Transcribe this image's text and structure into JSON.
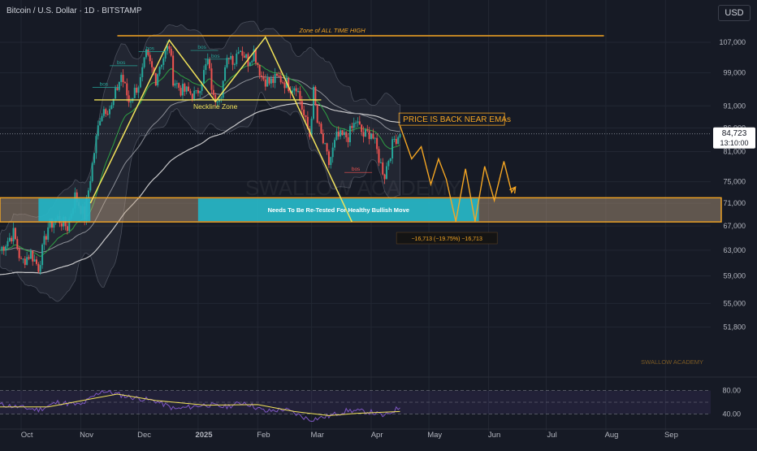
{
  "header": {
    "currency": "USD"
  },
  "chart_data": {
    "type": "candlestick",
    "title": "Bitcoin / U.S. Dollar · 1D · BITSTAMP",
    "ylim": [
      45500,
      112000
    ],
    "price_ticks": [
      107000,
      99000,
      91000,
      86000,
      81000,
      75000,
      71000,
      67000,
      63000,
      59000,
      55000,
      51800
    ],
    "price_tick_labels": [
      "107,000",
      "99,000",
      "91,000",
      "86,000",
      "81,000",
      "75,000",
      "71,000",
      "67,000",
      "63,000",
      "59,000",
      "55,000",
      "51,800"
    ],
    "last_price": 84723,
    "last_price_label": "84,723",
    "countdown_label": "13:10:00",
    "x_labels": [
      "Oct",
      "Nov",
      "Dec",
      "2025",
      "Feb",
      "Mar",
      "Apr",
      "May",
      "Jun",
      "Jul",
      "Aug",
      "Sep"
    ],
    "grid": true,
    "watermark": "SWALLOW ACADEMY",
    "signature": "SWALLOW ACADEMY",
    "close_path": [
      [
        "2024-09-20",
        63000
      ],
      [
        "2024-09-27",
        65800
      ],
      [
        "2024-10-01",
        61000
      ],
      [
        "2024-10-06",
        62500
      ],
      [
        "2024-10-10",
        60300
      ],
      [
        "2024-10-15",
        66900
      ],
      [
        "2024-10-20",
        68300
      ],
      [
        "2024-10-25",
        66800
      ],
      [
        "2024-10-29",
        72300
      ],
      [
        "2024-11-03",
        68700
      ],
      [
        "2024-11-06",
        75800
      ],
      [
        "2024-11-11",
        88700
      ],
      [
        "2024-11-13",
        90400
      ],
      [
        "2024-11-17",
        90600
      ],
      [
        "2024-11-22",
        98500
      ],
      [
        "2024-11-26",
        92000
      ],
      [
        "2024-12-02",
        97000
      ],
      [
        "2024-12-05",
        103500
      ],
      [
        "2024-12-10",
        97500
      ],
      [
        "2024-12-12",
        101000
      ],
      [
        "2024-12-17",
        106100
      ],
      [
        "2024-12-19",
        97500
      ],
      [
        "2024-12-23",
        94800
      ],
      [
        "2024-12-27",
        94200
      ],
      [
        "2024-12-31",
        93400
      ],
      [
        "2025-01-03",
        97500
      ],
      [
        "2025-01-06",
        102000
      ],
      [
        "2025-01-09",
        92500
      ],
      [
        "2025-01-13",
        94500
      ],
      [
        "2025-01-17",
        104000
      ],
      [
        "2025-01-20",
        102000
      ],
      [
        "2025-01-22",
        106000
      ],
      [
        "2025-01-27",
        102000
      ],
      [
        "2025-01-30",
        104700
      ],
      [
        "2025-02-03",
        98000
      ],
      [
        "2025-02-07",
        96500
      ],
      [
        "2025-02-12",
        97800
      ],
      [
        "2025-02-18",
        95500
      ],
      [
        "2025-02-21",
        96000
      ],
      [
        "2025-02-25",
        88700
      ],
      [
        "2025-02-28",
        84300
      ],
      [
        "2025-03-02",
        94200
      ],
      [
        "2025-03-04",
        87200
      ],
      [
        "2025-03-10",
        78500
      ],
      [
        "2025-03-14",
        84000
      ],
      [
        "2025-03-20",
        84200
      ],
      [
        "2025-03-24",
        87500
      ],
      [
        "2025-03-28",
        84300
      ],
      [
        "2025-04-01",
        85200
      ],
      [
        "2025-04-06",
        78300
      ],
      [
        "2025-04-08",
        76300
      ],
      [
        "2025-04-10",
        79600
      ],
      [
        "2025-04-13",
        83600
      ],
      [
        "2025-04-16",
        84723
      ]
    ],
    "projection_path": [
      [
        "2025-04-16",
        86500
      ],
      [
        "2025-04-22",
        79500
      ],
      [
        "2025-04-27",
        82000
      ],
      [
        "2025-05-02",
        74500
      ],
      [
        "2025-05-06",
        79500
      ],
      [
        "2025-05-10",
        75500
      ],
      [
        "2025-05-15",
        67800
      ],
      [
        "2025-05-20",
        77500
      ],
      [
        "2025-05-25",
        67800
      ],
      [
        "2025-05-30",
        78000
      ],
      [
        "2025-06-04",
        71500
      ],
      [
        "2025-06-09",
        79000
      ],
      [
        "2025-06-13",
        73000
      ],
      [
        "2025-06-15",
        74000
      ]
    ],
    "zones": [
      {
        "label": "Needs To Be Re-Tested For Healthy Bullish Move",
        "y_top": 72000,
        "y_bottom": 67700,
        "x_start": "2024-09-20",
        "x_end": "2025-09-30"
      }
    ],
    "horizontal_lines": [
      {
        "label": "Zone of ALL TIME HIGH",
        "y": 108800,
        "x_start": "2024-11-20",
        "x_end": "2025-07-31"
      },
      {
        "label": "Neckline Zone",
        "y": 92400,
        "x_start": "2024-11-08",
        "x_end": "2025-03-06"
      }
    ],
    "pattern_lines": [
      [
        [
          "2024-11-06",
          71000
        ],
        [
          "2024-12-17",
          107600
        ],
        [
          "2025-01-10",
          92000
        ],
        [
          "2025-02-05",
          108400
        ],
        [
          "2025-03-22",
          67700
        ]
      ]
    ],
    "annotations": [
      {
        "text": "PRICE IS BACK NEAR EMAs",
        "date": "2025-04-15",
        "price": 87700
      },
      {
        "text": "−16,713 (−19.75%) −16,713",
        "date": "2025-04-15",
        "price": 64700
      }
    ],
    "bos_labels": [
      {
        "text": "bos",
        "date": "2024-11-13",
        "price": 95400
      },
      {
        "text": "bos",
        "date": "2024-11-22",
        "price": 100800
      },
      {
        "text": "bos",
        "date": "2024-12-07",
        "price": 104500
      },
      {
        "text": "bos",
        "date": "2025-01-03",
        "price": 104800
      },
      {
        "text": "bos",
        "date": "2025-01-10",
        "price": 102500
      },
      {
        "text": "bos",
        "date": "2025-03-24",
        "price": 76800
      }
    ],
    "rsi": {
      "ticks": [
        80,
        40
      ],
      "tick_labels": [
        "80.00",
        "40.00"
      ],
      "ylim": [
        25,
        95
      ],
      "values": [
        [
          "2024-09-20",
          56
        ],
        [
          "2024-10-01",
          51
        ],
        [
          "2024-10-10",
          47
        ],
        [
          "2024-10-20",
          60
        ],
        [
          "2024-11-01",
          55
        ],
        [
          "2024-11-12",
          80
        ],
        [
          "2024-11-25",
          70
        ],
        [
          "2024-12-10",
          62
        ],
        [
          "2024-12-20",
          48
        ],
        [
          "2025-01-05",
          56
        ],
        [
          "2025-01-15",
          52
        ],
        [
          "2025-01-25",
          60
        ],
        [
          "2025-02-05",
          44
        ],
        [
          "2025-02-15",
          48
        ],
        [
          "2025-02-28",
          30
        ],
        [
          "2025-03-10",
          36
        ],
        [
          "2025-03-20",
          46
        ],
        [
          "2025-04-01",
          43
        ],
        [
          "2025-04-08",
          36
        ],
        [
          "2025-04-16",
          52
        ]
      ],
      "ma_values": [
        [
          "2024-09-20",
          52
        ],
        [
          "2024-10-15",
          52
        ],
        [
          "2024-11-10",
          68
        ],
        [
          "2024-11-20",
          74
        ],
        [
          "2024-12-10",
          63
        ],
        [
          "2025-01-05",
          55
        ],
        [
          "2025-02-01",
          56
        ],
        [
          "2025-02-20",
          44
        ],
        [
          "2025-03-10",
          37
        ],
        [
          "2025-03-25",
          41
        ],
        [
          "2025-04-16",
          44
        ]
      ]
    }
  }
}
